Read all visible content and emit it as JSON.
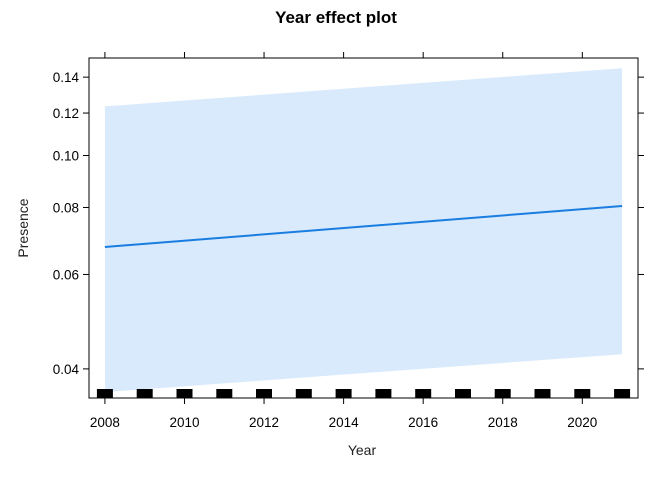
{
  "chart_data": {
    "type": "line",
    "title": "Year effect plot",
    "xlabel": "Year",
    "ylabel": "Presence",
    "y_scale": "log",
    "xlim": [
      2007.6,
      2021.4
    ],
    "ylim": [
      0.0353,
      0.152
    ],
    "x_ticks": [
      2008,
      2010,
      2012,
      2014,
      2016,
      2018,
      2020
    ],
    "y_ticks": [
      0.04,
      0.06,
      0.08,
      0.1,
      0.12,
      0.14
    ],
    "y_tick_labels": [
      "0.04",
      "0.06",
      "0.08",
      "0.10",
      "0.12",
      "0.14"
    ],
    "series": [
      {
        "x": [
          2008,
          2021
        ],
        "y": [
          0.0675,
          0.0805
        ],
        "lower": [
          0.0362,
          0.0426
        ],
        "upper": [
          0.1235,
          0.1455
        ]
      }
    ],
    "rug_x": [
      2008,
      2009,
      2010,
      2011,
      2012,
      2013,
      2014,
      2015,
      2016,
      2017,
      2018,
      2019,
      2020,
      2021
    ],
    "colors": {
      "line": "#1a7de0",
      "band": "#d8eafc",
      "rug": "#000000",
      "frame": "#000000"
    },
    "grid": false,
    "legend": "none"
  }
}
